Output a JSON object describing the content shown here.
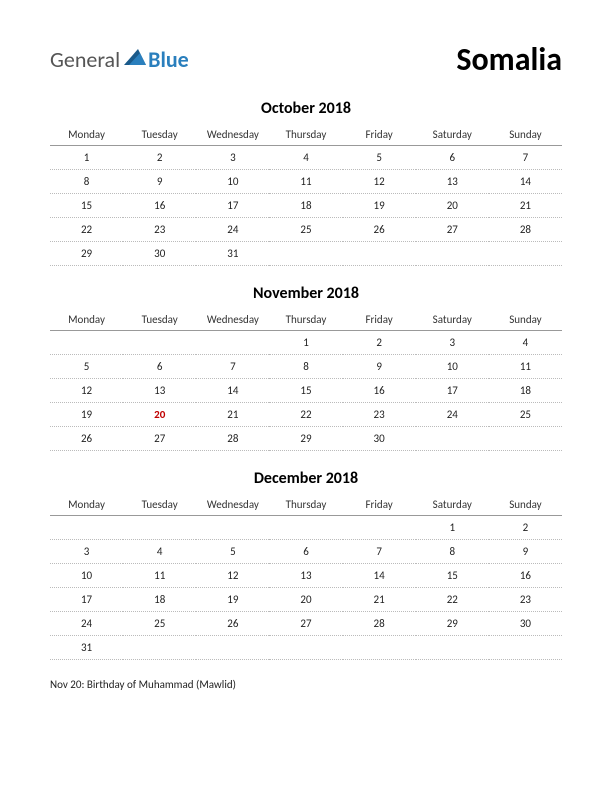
{
  "logo": {
    "part1": "General",
    "part2": "Blue"
  },
  "title": "Somalia",
  "weekdays": [
    "Monday",
    "Tuesday",
    "Wednesday",
    "Thursday",
    "Friday",
    "Saturday",
    "Sunday"
  ],
  "months": [
    {
      "title": "October 2018",
      "weeks": [
        [
          {
            "d": "1"
          },
          {
            "d": "2"
          },
          {
            "d": "3"
          },
          {
            "d": "4"
          },
          {
            "d": "5"
          },
          {
            "d": "6"
          },
          {
            "d": "7"
          }
        ],
        [
          {
            "d": "8"
          },
          {
            "d": "9"
          },
          {
            "d": "10"
          },
          {
            "d": "11"
          },
          {
            "d": "12"
          },
          {
            "d": "13"
          },
          {
            "d": "14"
          }
        ],
        [
          {
            "d": "15"
          },
          {
            "d": "16"
          },
          {
            "d": "17"
          },
          {
            "d": "18"
          },
          {
            "d": "19"
          },
          {
            "d": "20"
          },
          {
            "d": "21"
          }
        ],
        [
          {
            "d": "22"
          },
          {
            "d": "23"
          },
          {
            "d": "24"
          },
          {
            "d": "25"
          },
          {
            "d": "26"
          },
          {
            "d": "27"
          },
          {
            "d": "28"
          }
        ],
        [
          {
            "d": "29"
          },
          {
            "d": "30"
          },
          {
            "d": "31"
          },
          {
            "d": ""
          },
          {
            "d": ""
          },
          {
            "d": ""
          },
          {
            "d": ""
          }
        ]
      ]
    },
    {
      "title": "November 2018",
      "weeks": [
        [
          {
            "d": ""
          },
          {
            "d": ""
          },
          {
            "d": ""
          },
          {
            "d": "1"
          },
          {
            "d": "2"
          },
          {
            "d": "3"
          },
          {
            "d": "4"
          }
        ],
        [
          {
            "d": "5"
          },
          {
            "d": "6"
          },
          {
            "d": "7"
          },
          {
            "d": "8"
          },
          {
            "d": "9"
          },
          {
            "d": "10"
          },
          {
            "d": "11"
          }
        ],
        [
          {
            "d": "12"
          },
          {
            "d": "13"
          },
          {
            "d": "14"
          },
          {
            "d": "15"
          },
          {
            "d": "16"
          },
          {
            "d": "17"
          },
          {
            "d": "18"
          }
        ],
        [
          {
            "d": "19"
          },
          {
            "d": "20",
            "h": true
          },
          {
            "d": "21"
          },
          {
            "d": "22"
          },
          {
            "d": "23"
          },
          {
            "d": "24"
          },
          {
            "d": "25"
          }
        ],
        [
          {
            "d": "26"
          },
          {
            "d": "27"
          },
          {
            "d": "28"
          },
          {
            "d": "29"
          },
          {
            "d": "30"
          },
          {
            "d": ""
          },
          {
            "d": ""
          }
        ]
      ]
    },
    {
      "title": "December 2018",
      "weeks": [
        [
          {
            "d": ""
          },
          {
            "d": ""
          },
          {
            "d": ""
          },
          {
            "d": ""
          },
          {
            "d": ""
          },
          {
            "d": "1"
          },
          {
            "d": "2"
          }
        ],
        [
          {
            "d": "3"
          },
          {
            "d": "4"
          },
          {
            "d": "5"
          },
          {
            "d": "6"
          },
          {
            "d": "7"
          },
          {
            "d": "8"
          },
          {
            "d": "9"
          }
        ],
        [
          {
            "d": "10"
          },
          {
            "d": "11"
          },
          {
            "d": "12"
          },
          {
            "d": "13"
          },
          {
            "d": "14"
          },
          {
            "d": "15"
          },
          {
            "d": "16"
          }
        ],
        [
          {
            "d": "17"
          },
          {
            "d": "18"
          },
          {
            "d": "19"
          },
          {
            "d": "20"
          },
          {
            "d": "21"
          },
          {
            "d": "22"
          },
          {
            "d": "23"
          }
        ],
        [
          {
            "d": "24"
          },
          {
            "d": "25"
          },
          {
            "d": "26"
          },
          {
            "d": "27"
          },
          {
            "d": "28"
          },
          {
            "d": "29"
          },
          {
            "d": "30"
          }
        ],
        [
          {
            "d": "31"
          },
          {
            "d": ""
          },
          {
            "d": ""
          },
          {
            "d": ""
          },
          {
            "d": ""
          },
          {
            "d": ""
          },
          {
            "d": ""
          }
        ]
      ]
    }
  ],
  "note": "Nov 20: Birthday of Muhammad (Mawlid)",
  "colors": {
    "holiday": "#c00000",
    "logo_blue": "#2a7fbd",
    "logo_dark": "#1a5a8a"
  }
}
